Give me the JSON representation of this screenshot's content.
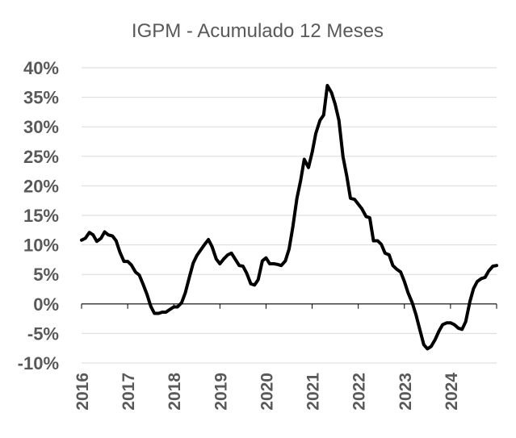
{
  "chart_data": {
    "type": "line",
    "title": "IGPM - Acumulado 12 Meses",
    "xlabel": "",
    "ylabel": "",
    "ylim": [
      -10,
      40
    ],
    "xlim": [
      2016,
      2025
    ],
    "yticks": [
      -10,
      -5,
      0,
      5,
      10,
      15,
      20,
      25,
      30,
      35,
      40
    ],
    "ytick_labels": [
      "-10%",
      "-5%",
      "0%",
      "5%",
      "10%",
      "15%",
      "20%",
      "25%",
      "30%",
      "35%",
      "40%"
    ],
    "xticks": [
      2016,
      2017,
      2018,
      2019,
      2020,
      2021,
      2022,
      2023,
      2024
    ],
    "xtick_labels": [
      "2016",
      "2017",
      "2018",
      "2019",
      "2020",
      "2021",
      "2022",
      "2023",
      "2024"
    ],
    "grid": true,
    "legend": "none",
    "series": [
      {
        "color": "#000000",
        "x": [
          2016.0,
          2016.08,
          2016.17,
          2016.25,
          2016.33,
          2016.42,
          2016.5,
          2016.58,
          2016.67,
          2016.75,
          2016.83,
          2016.92,
          2017.0,
          2017.08,
          2017.17,
          2017.25,
          2017.33,
          2017.42,
          2017.5,
          2017.58,
          2017.67,
          2017.75,
          2017.83,
          2017.92,
          2018.0,
          2018.08,
          2018.17,
          2018.25,
          2018.33,
          2018.42,
          2018.5,
          2018.58,
          2018.67,
          2018.75,
          2018.83,
          2018.92,
          2019.0,
          2019.08,
          2019.17,
          2019.25,
          2019.33,
          2019.42,
          2019.5,
          2019.58,
          2019.67,
          2019.75,
          2019.83,
          2019.92,
          2020.0,
          2020.08,
          2020.17,
          2020.25,
          2020.33,
          2020.42,
          2020.5,
          2020.58,
          2020.67,
          2020.75,
          2020.83,
          2020.92,
          2021.0,
          2021.08,
          2021.17,
          2021.25,
          2021.33,
          2021.42,
          2021.5,
          2021.58,
          2021.67,
          2021.75,
          2021.83,
          2021.92,
          2022.0,
          2022.08,
          2022.17,
          2022.25,
          2022.33,
          2022.42,
          2022.5,
          2022.58,
          2022.67,
          2022.75,
          2022.83,
          2022.92,
          2023.0,
          2023.08,
          2023.17,
          2023.25,
          2023.33,
          2023.42,
          2023.5,
          2023.58,
          2023.67,
          2023.75,
          2023.83,
          2023.92,
          2024.0,
          2024.08,
          2024.17,
          2024.25,
          2024.33,
          2024.42,
          2024.5,
          2024.58,
          2024.67,
          2024.75,
          2024.83,
          2024.92
        ],
        "values": [
          10.8,
          11.1,
          12.1,
          11.7,
          10.6,
          11.1,
          12.2,
          11.7,
          11.5,
          10.7,
          8.8,
          7.2,
          7.2,
          6.6,
          5.4,
          4.9,
          3.4,
          1.6,
          -0.4,
          -1.6,
          -1.6,
          -1.4,
          -1.4,
          -0.9,
          -0.5,
          -0.5,
          0.2,
          1.9,
          4.3,
          6.9,
          8.2,
          9.1,
          10.1,
          10.9,
          9.7,
          7.6,
          6.8,
          7.6,
          8.3,
          8.6,
          7.6,
          6.5,
          6.4,
          5.2,
          3.4,
          3.2,
          4.1,
          7.3,
          7.8,
          6.8,
          6.8,
          6.7,
          6.5,
          7.3,
          9.3,
          13.0,
          17.9,
          20.9,
          24.5,
          23.1,
          25.7,
          28.9,
          31.1,
          32.0,
          37.0,
          35.8,
          33.8,
          31.1,
          24.9,
          21.7,
          17.9,
          17.7,
          16.9,
          16.1,
          14.8,
          14.6,
          10.7,
          10.7,
          10.1,
          8.6,
          8.3,
          6.5,
          5.9,
          5.4,
          3.8,
          1.9,
          0.2,
          -1.8,
          -4.2,
          -6.9,
          -7.6,
          -7.2,
          -6.0,
          -4.6,
          -3.5,
          -3.2,
          -3.2,
          -3.5,
          -4.1,
          -4.3,
          -3.0,
          0.4,
          2.6,
          3.8,
          4.3,
          4.5,
          5.6,
          6.4
        ],
        "last_point": {
          "x": 2025.0,
          "value": 6.5
        }
      }
    ]
  }
}
